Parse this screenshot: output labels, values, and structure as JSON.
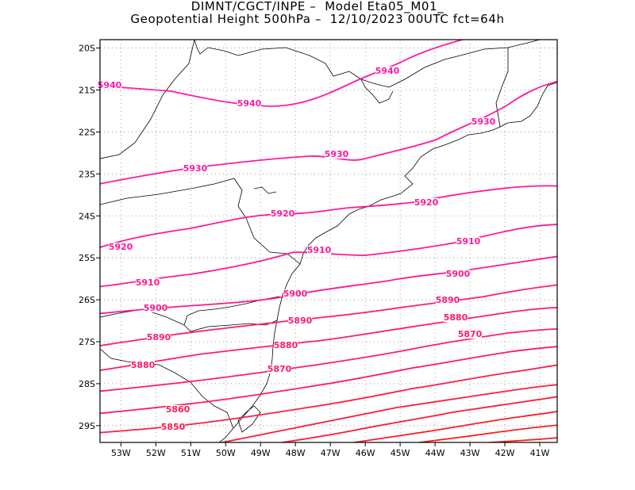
{
  "title": {
    "line1": "DIMNT/CGCT/INPE –  Model Eta05_M01_",
    "line2": "Geopotential Height 500hPa –  12/10/2023 00UTC fct=64h"
  },
  "map": {
    "lon_range": [
      -53.6,
      -40.5
    ],
    "lat_range": [
      -29.4,
      -19.8
    ],
    "lon_ticks": [
      "53W",
      "52W",
      "51W",
      "50W",
      "49W",
      "48W",
      "47W",
      "46W",
      "45W",
      "44W",
      "43W",
      "42W",
      "41W"
    ],
    "lat_ticks": [
      "20S",
      "21S",
      "22S",
      "23S",
      "24S",
      "25S",
      "26S",
      "27S",
      "28S",
      "29S"
    ],
    "grid": "dotted",
    "coastline_color": "#000000"
  },
  "chart_data": {
    "type": "contour",
    "variable": "Geopotential Height 500hPa",
    "units": "gpm",
    "contours": [
      {
        "level": 5940,
        "color": "#ff1aa8",
        "labels": [
          "5940",
          "5940",
          "5940"
        ]
      },
      {
        "level": 5930,
        "color": "#ff1aa0",
        "labels": [
          "5930",
          "5930",
          "5930"
        ]
      },
      {
        "level": 5920,
        "color": "#ff1a98",
        "labels": [
          "5920",
          "5920",
          "5920"
        ]
      },
      {
        "level": 5910,
        "color": "#ff1a90",
        "labels": [
          "5910",
          "5910",
          "5910"
        ]
      },
      {
        "level": 5900,
        "color": "#ff1a88",
        "labels": [
          "5900",
          "5900",
          "5900"
        ]
      },
      {
        "level": 5890,
        "color": "#ff1a78",
        "labels": [
          "5890",
          "5890",
          "5890"
        ]
      },
      {
        "level": 5880,
        "color": "#ff1a70",
        "labels": [
          "5880",
          "5880",
          "5880"
        ]
      },
      {
        "level": 5870,
        "color": "#ff1a68",
        "labels": [
          "5870",
          "5870"
        ]
      },
      {
        "level": 5860,
        "color": "#ff1a58",
        "labels": [
          "5860"
        ]
      },
      {
        "level": 5850,
        "color": "#ff1a4a",
        "labels": [
          "5850"
        ]
      },
      {
        "level": 5840,
        "color": "#ff1a40",
        "labels": []
      },
      {
        "level": 5830,
        "color": "#ff1a34",
        "labels": []
      },
      {
        "level": 5820,
        "color": "#ff1a28",
        "labels": []
      },
      {
        "level": 5810,
        "color": "#ff1a1a",
        "labels": []
      }
    ]
  }
}
